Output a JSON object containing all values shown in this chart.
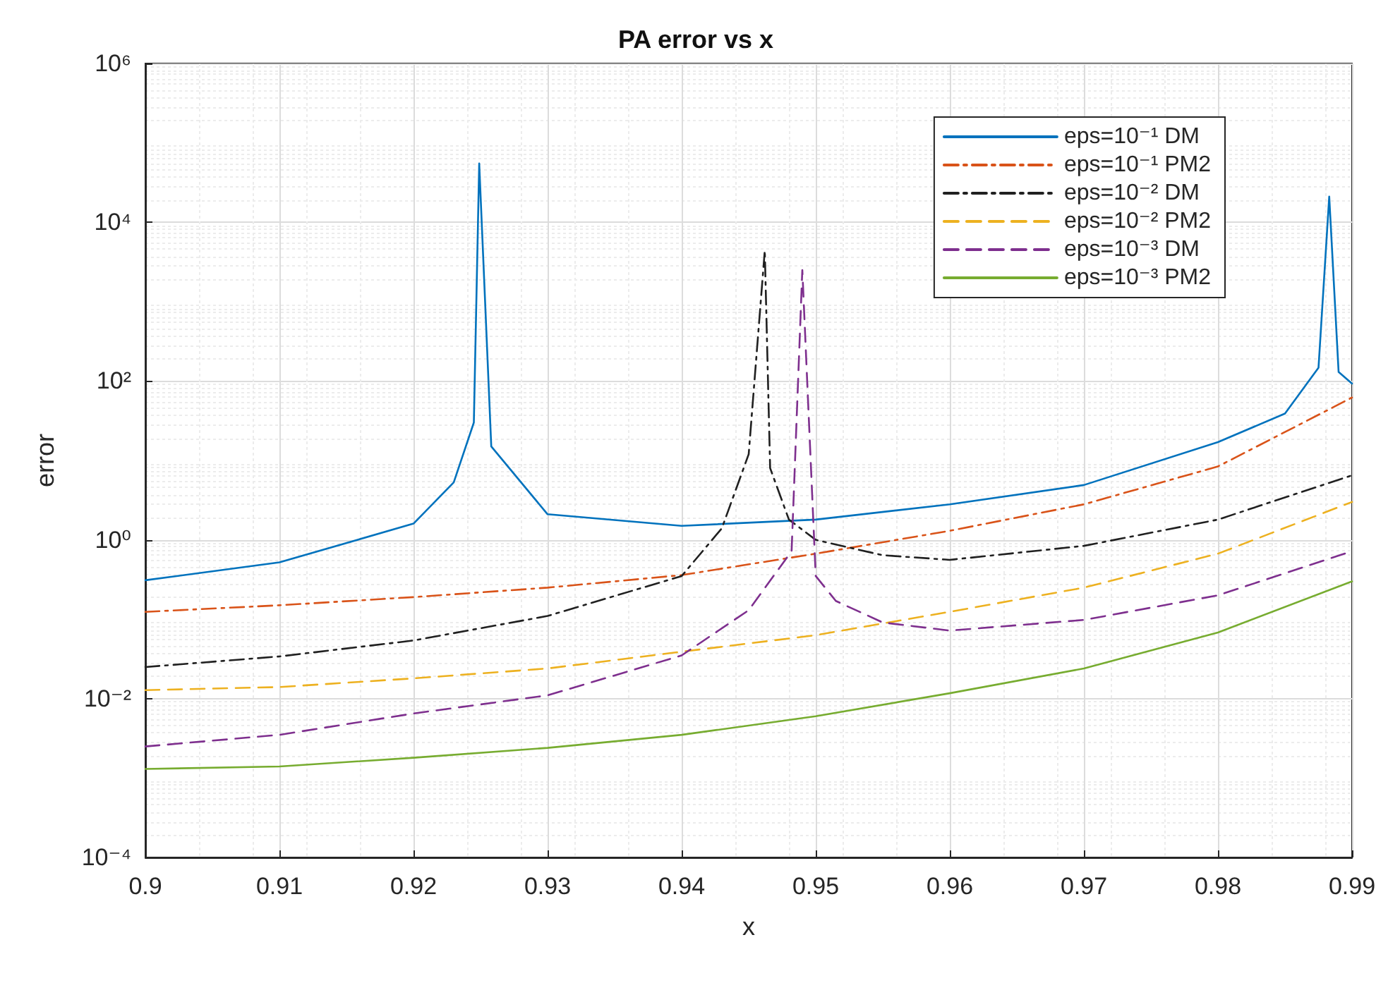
{
  "chart_data": {
    "type": "line",
    "title": "PA error vs x",
    "xlabel": "x",
    "ylabel": "error",
    "log": "y",
    "grid": true,
    "legend": "top right",
    "marker": "none",
    "xlim": [
      0.9,
      0.99
    ],
    "xticks": [
      0.9,
      0.91,
      0.92,
      0.93,
      0.94,
      0.95,
      0.96,
      0.97,
      0.98,
      0.99
    ],
    "ylim": [
      0.0001,
      1000000
    ],
    "yticks": [
      {
        "value": 0.0001,
        "label": "10⁻⁴"
      },
      {
        "value": 0.01,
        "label": "10⁻²"
      },
      {
        "value": 1,
        "label": "10⁰"
      },
      {
        "value": 100,
        "label": "10²"
      },
      {
        "value": 10000,
        "label": "10⁴"
      },
      {
        "value": 1000000,
        "label": "10⁶"
      }
    ],
    "series": [
      {
        "name": "eps=10⁻¹ DM",
        "color": "#0072bd",
        "line_style": "solid",
        "x": [
          0.9,
          0.91,
          0.92,
          0.923,
          0.9245,
          0.9249,
          0.9258,
          0.93,
          0.94,
          0.95,
          0.96,
          0.97,
          0.98,
          0.985,
          0.9875,
          0.9883,
          0.989,
          0.99
        ],
        "values": [
          0.31,
          0.52,
          1.6,
          5.3,
          30,
          55000,
          15,
          2.1,
          1.5,
          1.8,
          2.8,
          4.9,
          17,
          39,
          147,
          21000,
          130,
          93
        ]
      },
      {
        "name": "eps=10⁻¹ PM2",
        "color": "#d95319",
        "line_style": "dashdot",
        "x": [
          0.9,
          0.91,
          0.92,
          0.93,
          0.94,
          0.95,
          0.96,
          0.97,
          0.98,
          0.99
        ],
        "values": [
          0.124,
          0.15,
          0.19,
          0.25,
          0.36,
          0.67,
          1.3,
          2.8,
          8.4,
          62
        ]
      },
      {
        "name": "eps=10⁻² DM",
        "color": "#202020",
        "line_style": "dashdot",
        "x": [
          0.9,
          0.91,
          0.92,
          0.93,
          0.94,
          0.943,
          0.945,
          0.9462,
          0.9466,
          0.948,
          0.95,
          0.955,
          0.96,
          0.97,
          0.98,
          0.99
        ],
        "values": [
          0.025,
          0.034,
          0.054,
          0.11,
          0.35,
          1.4,
          12,
          4400,
          8,
          1.8,
          1.0,
          0.64,
          0.56,
          0.84,
          1.8,
          6.5
        ]
      },
      {
        "name": "eps=10⁻² PM2",
        "color": "#edb120",
        "line_style": "dashed",
        "x": [
          0.9,
          0.91,
          0.92,
          0.93,
          0.94,
          0.95,
          0.96,
          0.97,
          0.98,
          0.99
        ],
        "values": [
          0.0128,
          0.014,
          0.018,
          0.024,
          0.039,
          0.063,
          0.124,
          0.25,
          0.67,
          3.0
        ]
      },
      {
        "name": "eps=10⁻³ DM",
        "color": "#7e2f8e",
        "line_style": "dashed",
        "x": [
          0.9,
          0.91,
          0.92,
          0.93,
          0.94,
          0.945,
          0.9482,
          0.949,
          0.95,
          0.9515,
          0.955,
          0.96,
          0.97,
          0.98,
          0.99
        ],
        "values": [
          0.0025,
          0.0035,
          0.0065,
          0.011,
          0.035,
          0.13,
          0.72,
          2500,
          0.35,
          0.17,
          0.091,
          0.072,
          0.098,
          0.2,
          0.72
        ]
      },
      {
        "name": "eps=10⁻³ PM2",
        "color": "#77ac30",
        "line_style": "solid",
        "x": [
          0.9,
          0.91,
          0.92,
          0.93,
          0.94,
          0.95,
          0.96,
          0.97,
          0.98,
          0.99
        ],
        "values": [
          0.0013,
          0.0014,
          0.0018,
          0.0024,
          0.0035,
          0.006,
          0.0117,
          0.024,
          0.068,
          0.3
        ]
      }
    ]
  }
}
